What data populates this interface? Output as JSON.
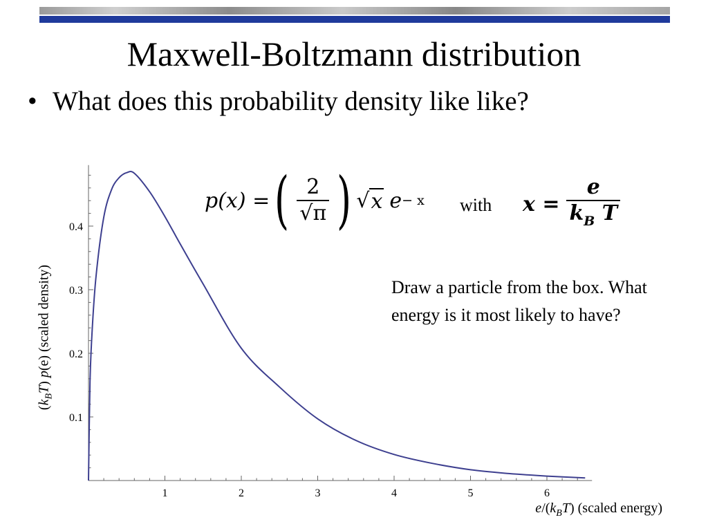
{
  "slide": {
    "title": "Maxwell-Boltzmann distribution",
    "bullet": "What does this probability density like like?",
    "question": "Draw a particle from the box. What energy is it most likely to have?",
    "accent_color": "#1f3a9c"
  },
  "formula": {
    "lhs": "p(x) =",
    "numerator": "2",
    "denominator": "√π",
    "sqrt_arg": "x",
    "base": "e",
    "exponent": "− x",
    "with_word": "with",
    "x_lhs": "x =",
    "x_numerator": "e",
    "x_den_k": "k",
    "x_den_sub": "B",
    "x_den_t": "T"
  },
  "axis_text": {
    "y_prefix": "(",
    "y_k": "k",
    "y_sub": "B",
    "y_T": "T",
    "y_mid": ") ",
    "y_p": "p",
    "y_rest": "(e) (scaled density)",
    "x_e": "e",
    "x_mid": "/(",
    "x_k": "k",
    "x_sub": "B",
    "x_T": "T",
    "x_rest": ") (scaled energy)"
  },
  "chart_data": {
    "type": "line",
    "xlim": [
      0,
      6.5
    ],
    "ylim": [
      0,
      0.485
    ],
    "x_ticks": [
      1,
      2,
      3,
      4,
      5,
      6
    ],
    "y_ticks": [
      0.1,
      0.2,
      0.3,
      0.4
    ],
    "line_color": "#3d3f8f",
    "series": [
      {
        "x": [
          0,
          0.02,
          0.05,
          0.1,
          0.2,
          0.3,
          0.4,
          0.5,
          0.6,
          0.8,
          1.0,
          1.2,
          1.5,
          2.0,
          2.5,
          3.0,
          3.5,
          4.0,
          4.5,
          5.0,
          5.5,
          6.0,
          6.5
        ],
        "y": [
          0,
          0.156,
          0.24,
          0.323,
          0.414,
          0.457,
          0.476,
          0.484,
          0.483,
          0.454,
          0.415,
          0.372,
          0.309,
          0.208,
          0.147,
          0.097,
          0.063,
          0.041,
          0.027,
          0.017,
          0.011,
          0.007,
          0.004
        ]
      }
    ]
  }
}
